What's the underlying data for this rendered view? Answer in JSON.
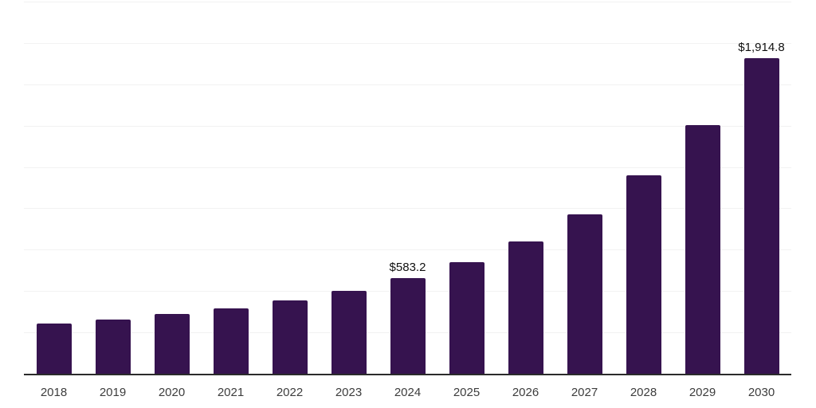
{
  "chart": {
    "background": "#ffffff",
    "bar_color": "#36134F",
    "grid_color": "#f2f2f2",
    "axis_color": "#2b2b2b",
    "tick_label_color": "#3d3d3d",
    "data_label_color": "#111111"
  },
  "chart_data": {
    "type": "bar",
    "title": "",
    "xlabel": "",
    "ylabel": "",
    "categories": [
      "2018",
      "2019",
      "2020",
      "2021",
      "2022",
      "2023",
      "2024",
      "2025",
      "2026",
      "2027",
      "2028",
      "2029",
      "2030"
    ],
    "values": [
      308,
      334,
      366,
      400,
      448,
      506,
      583.2,
      680,
      807,
      969,
      1205,
      1509,
      1914.8
    ],
    "data_labels": {
      "2024": "$583.2",
      "2030": "$1,914.8"
    },
    "ylim": [
      0,
      2250
    ],
    "gridline_step": 250,
    "grid": "on",
    "legend": "none",
    "y_tick_labels": "none"
  }
}
